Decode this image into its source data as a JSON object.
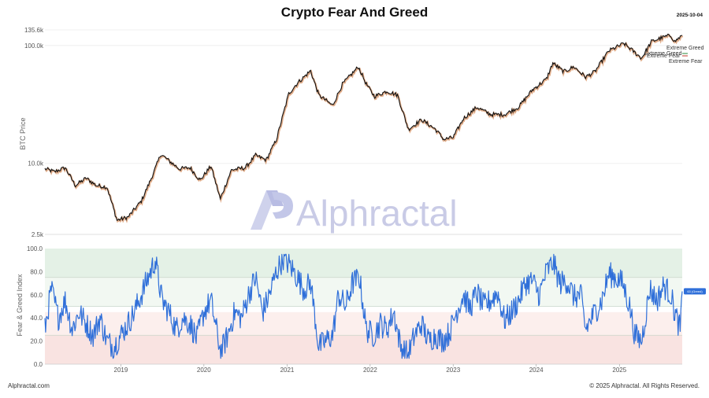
{
  "header": {
    "title": "Crypto Fear And Greed",
    "date": "2025-10-04"
  },
  "footer": {
    "left": "Alphractal.com",
    "right": "© 2025 Alphractal. All Rights Reserved."
  },
  "watermark": {
    "text": "Alphractal"
  },
  "colors": {
    "price_line": "#111111",
    "price_shadow": "#c96a2a",
    "fng_line": "#2f6fd9",
    "greed_zone": "#e4f1e6",
    "fear_zone": "#f9e3e1",
    "greed_zone_light": "#f2f8f2",
    "fear_zone_light": "#fcefed",
    "badge_fill": "#2f6fd9"
  },
  "chart_data": [
    {
      "type": "line",
      "ylabel": "BTC Price",
      "yscale": "log",
      "ylim": [
        2500,
        135600
      ],
      "ytick_labels": [
        "135.6k",
        "100.0k",
        "10.0k",
        "2.5k"
      ],
      "ytick_values": [
        135600,
        100000,
        10000,
        2500
      ],
      "legend_labels": [
        "Extreme Greed",
        "Extreme Greed",
        "Extreme Fear",
        "Extreme Fear"
      ],
      "series": [
        {
          "x": [
            "2018-02-01",
            "2018-03-15",
            "2018-05-01",
            "2018-06-15",
            "2018-08-01",
            "2018-09-15",
            "2018-11-01",
            "2018-12-15",
            "2019-02-01",
            "2019-04-01",
            "2019-05-15",
            "2019-06-26",
            "2019-08-01",
            "2019-09-15",
            "2019-11-01",
            "2019-12-15",
            "2020-02-01",
            "2020-03-13",
            "2020-05-01",
            "2020-07-01",
            "2020-08-15",
            "2020-10-01",
            "2020-11-15",
            "2021-01-08",
            "2021-02-15",
            "2021-04-14",
            "2021-05-20",
            "2021-07-20",
            "2021-09-01",
            "2021-11-10",
            "2021-12-15",
            "2022-01-20",
            "2022-03-15",
            "2022-05-01",
            "2022-06-18",
            "2022-08-15",
            "2022-10-15",
            "2022-11-21",
            "2023-01-01",
            "2023-02-15",
            "2023-04-15",
            "2023-06-15",
            "2023-08-15",
            "2023-10-15",
            "2023-12-15",
            "2024-02-15",
            "2024-03-14",
            "2024-05-01",
            "2024-06-15",
            "2024-08-05",
            "2024-09-15",
            "2024-11-15",
            "2025-01-20",
            "2025-02-15",
            "2025-04-08",
            "2025-05-22",
            "2025-07-15",
            "2025-08-14",
            "2025-09-01",
            "2025-10-04"
          ],
          "y": [
            9000,
            8500,
            9200,
            6500,
            7500,
            6500,
            6300,
            3300,
            3500,
            4800,
            7500,
            12000,
            10500,
            9000,
            9200,
            7200,
            9500,
            5000,
            8800,
            9200,
            11700,
            10700,
            16000,
            39000,
            48000,
            61000,
            38000,
            31000,
            47000,
            66000,
            47000,
            37000,
            41000,
            38000,
            19500,
            23500,
            19500,
            16000,
            16600,
            24000,
            30000,
            26000,
            26000,
            30000,
            42000,
            52000,
            71000,
            60000,
            66000,
            54000,
            60000,
            90000,
            104000,
            95000,
            78000,
            108000,
            118000,
            122000,
            108000,
            122000
          ]
        }
      ]
    },
    {
      "type": "line",
      "ylabel": "Fear & Greed Index",
      "ylim": [
        0,
        100
      ],
      "ytick_labels": [
        "100.0",
        "80.0",
        "60.0",
        "40.0",
        "20.0",
        "0.0"
      ],
      "ytick_values": [
        100,
        80,
        60,
        40,
        20,
        0
      ],
      "xtick_labels": [
        "2019",
        "2020",
        "2021",
        "2022",
        "2023",
        "2024",
        "2025"
      ],
      "current_badge": "63 (Greed)",
      "series": [
        {
          "x": [
            "2018-02-01",
            "2018-03-01",
            "2018-04-01",
            "2018-05-01",
            "2018-06-01",
            "2018-07-01",
            "2018-08-01",
            "2018-09-01",
            "2018-10-01",
            "2018-11-01",
            "2018-12-01",
            "2019-01-01",
            "2019-02-01",
            "2019-03-01",
            "2019-04-01",
            "2019-05-01",
            "2019-06-01",
            "2019-07-01",
            "2019-08-01",
            "2019-09-01",
            "2019-10-01",
            "2019-11-01",
            "2019-12-01",
            "2020-01-01",
            "2020-02-01",
            "2020-03-15",
            "2020-04-15",
            "2020-05-15",
            "2020-06-15",
            "2020-07-15",
            "2020-08-15",
            "2020-09-15",
            "2020-10-15",
            "2020-11-15",
            "2020-12-15",
            "2021-01-15",
            "2021-02-15",
            "2021-03-15",
            "2021-04-15",
            "2021-05-20",
            "2021-06-20",
            "2021-07-20",
            "2021-08-15",
            "2021-09-15",
            "2021-10-15",
            "2021-11-15",
            "2021-12-15",
            "2022-01-15",
            "2022-02-15",
            "2022-03-15",
            "2022-04-15",
            "2022-05-15",
            "2022-06-18",
            "2022-07-15",
            "2022-08-15",
            "2022-09-15",
            "2022-10-15",
            "2022-11-15",
            "2022-12-15",
            "2023-01-15",
            "2023-02-15",
            "2023-03-15",
            "2023-04-15",
            "2023-05-15",
            "2023-06-15",
            "2023-07-15",
            "2023-08-15",
            "2023-09-15",
            "2023-10-15",
            "2023-11-15",
            "2023-12-15",
            "2024-01-15",
            "2024-02-15",
            "2024-03-15",
            "2024-04-15",
            "2024-05-15",
            "2024-06-15",
            "2024-07-15",
            "2024-08-05",
            "2024-09-15",
            "2024-10-15",
            "2024-11-15",
            "2024-12-15",
            "2025-01-15",
            "2025-02-15",
            "2025-03-10",
            "2025-04-08",
            "2025-05-15",
            "2025-06-15",
            "2025-07-15",
            "2025-08-15",
            "2025-09-01",
            "2025-09-25",
            "2025-10-04"
          ],
          "y": [
            30,
            65,
            40,
            55,
            30,
            45,
            35,
            25,
            40,
            20,
            15,
            25,
            35,
            45,
            60,
            75,
            90,
            55,
            45,
            30,
            40,
            35,
            22,
            45,
            55,
            10,
            25,
            45,
            40,
            60,
            75,
            45,
            60,
            80,
            92,
            85,
            75,
            65,
            70,
            15,
            20,
            25,
            60,
            50,
            70,
            75,
            30,
            25,
            35,
            30,
            45,
            15,
            8,
            25,
            35,
            20,
            25,
            20,
            27,
            45,
            60,
            48,
            62,
            50,
            55,
            62,
            38,
            45,
            55,
            70,
            72,
            60,
            80,
            88,
            70,
            72,
            58,
            60,
            30,
            45,
            55,
            78,
            75,
            70,
            50,
            25,
            20,
            65,
            55,
            68,
            60,
            45,
            30,
            63
          ]
        }
      ]
    }
  ]
}
